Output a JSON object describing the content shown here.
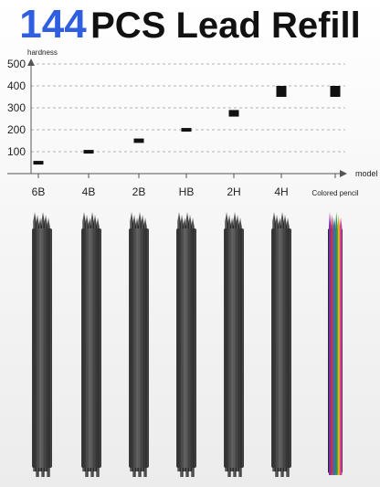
{
  "title": {
    "number": "144",
    "text": "PCS Lead Refill"
  },
  "chart_data": {
    "type": "scatter",
    "ylabel": "hardness",
    "xlabel": "model",
    "categories": [
      "6B",
      "4B",
      "2B",
      "HB",
      "2H",
      "4H",
      "Colored pencil"
    ],
    "series": [
      {
        "values": [
          50,
          100,
          150,
          200,
          275,
          375,
          375
        ]
      }
    ],
    "value_spans": [
      [
        42,
        58
      ],
      [
        92,
        108
      ],
      [
        140,
        160
      ],
      [
        192,
        208
      ],
      [
        260,
        290
      ],
      [
        350,
        400
      ],
      [
        350,
        400
      ]
    ],
    "yticks": [
      100,
      200,
      300,
      400,
      500
    ],
    "ylim": [
      0,
      550
    ],
    "grid": true,
    "marker_color": "#111111"
  },
  "pencils": {
    "lead_color": "#3a3a3a",
    "colored_leads": [
      "#7a2fb0",
      "#d23a3a",
      "#2f6fd0",
      "#2a9a4a",
      "#e0b020",
      "#d040a0"
    ]
  }
}
